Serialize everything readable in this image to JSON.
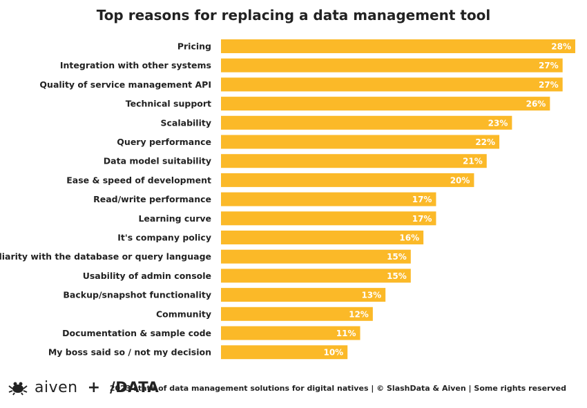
{
  "chart_data": {
    "type": "bar",
    "orientation": "horizontal",
    "title": "Top reasons for replacing a data management tool",
    "categories": [
      "Pricing",
      "Integration with other systems",
      "Quality of service management API",
      "Technical support",
      "Scalability",
      "Query performance",
      "Data model suitability",
      "Ease & speed of development",
      "Read/write performance",
      "Learning curve",
      "It's company policy",
      "Familiarity with the database or query language",
      "Usability of admin console",
      "Backup/snapshot functionality",
      "Community",
      "Documentation & sample code",
      "My boss said so / not my decision"
    ],
    "values": [
      28,
      27,
      27,
      26,
      23,
      22,
      21,
      20,
      17,
      17,
      16,
      15,
      15,
      13,
      12,
      11,
      10
    ],
    "value_suffix": "%",
    "bar_color": "#fbb928",
    "label_color": "#ffffff",
    "xlim": [
      0,
      28
    ],
    "grid": false,
    "legend": "none"
  },
  "footer": {
    "logo_primary": "aiven",
    "logo_plus": "+",
    "logo_secondary": "/DATA",
    "credit": "2023 state of data management solutions for digital natives | © SlashData & Aiven | Some rights reserved"
  },
  "icons": {
    "aiven": "aiven-crab-icon"
  }
}
